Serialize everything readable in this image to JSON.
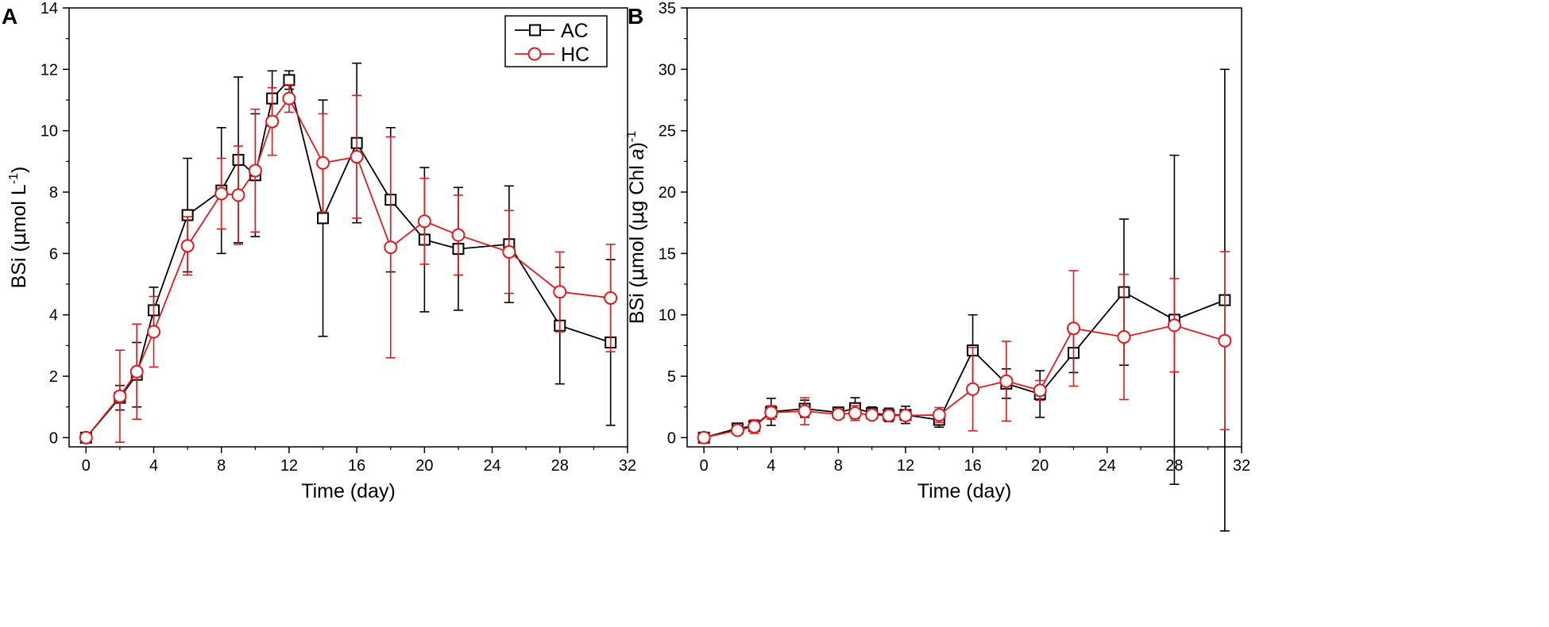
{
  "chart_data": [
    {
      "type": "line",
      "panel": "A",
      "xlabel": "Time (day)",
      "ylabel": {
        "pre": "BSi (",
        "mu": "μ",
        "mid": "mol L",
        "sup": "-1",
        "post": ")"
      },
      "xlim": [
        -1,
        32
      ],
      "ylim": [
        -0.3,
        14
      ],
      "xticks": [
        0,
        4,
        8,
        12,
        16,
        20,
        24,
        28,
        32
      ],
      "yticks": [
        0,
        2,
        4,
        6,
        8,
        10,
        12,
        14
      ],
      "x": [
        0,
        2,
        3,
        4,
        6,
        8,
        9,
        10,
        11,
        12,
        14,
        16,
        18,
        20,
        22,
        25,
        28,
        31
      ],
      "legend": {
        "position": "top-right",
        "entries": [
          "AC",
          "HC"
        ]
      },
      "series": [
        {
          "name": "AC",
          "color": "#000000",
          "marker": "square",
          "values": [
            0,
            1.3,
            2.05,
            4.15,
            7.25,
            8.05,
            9.05,
            8.55,
            11.05,
            11.65,
            7.15,
            9.6,
            7.75,
            6.45,
            6.15,
            6.3,
            3.65,
            3.1
          ],
          "errors": [
            0,
            0.4,
            1.05,
            0.75,
            1.85,
            2.05,
            2.7,
            2.0,
            0.9,
            0.3,
            3.85,
            2.6,
            2.35,
            2.35,
            2.0,
            1.9,
            1.9,
            2.7
          ]
        },
        {
          "name": "HC",
          "color": "#e41a1c",
          "marker": "circle",
          "values": [
            0,
            1.35,
            2.15,
            3.45,
            6.25,
            7.95,
            7.9,
            8.7,
            10.3,
            11.05,
            8.95,
            9.15,
            6.2,
            7.05,
            6.6,
            6.05,
            4.75,
            4.55
          ],
          "errors": [
            0,
            1.5,
            1.55,
            1.15,
            0.95,
            1.15,
            1.6,
            2.0,
            1.1,
            0.45,
            1.6,
            2.0,
            3.6,
            1.4,
            1.3,
            1.35,
            1.3,
            1.75
          ]
        }
      ]
    },
    {
      "type": "line",
      "panel": "B",
      "xlabel": "Time (day)",
      "ylabel": {
        "pre": "BSi (",
        "mu": "μ",
        "mid": "mol (",
        "mu2": "μ",
        "mid2": "g Chl ",
        "ital": "a",
        "post2": ")",
        "sup": "-1"
      },
      "xlim": [
        -1,
        32
      ],
      "ylim": [
        -0.75,
        35
      ],
      "xticks": [
        0,
        4,
        8,
        12,
        16,
        20,
        24,
        28,
        32
      ],
      "yticks": [
        0,
        5,
        10,
        15,
        20,
        25,
        30,
        35
      ],
      "x": [
        0,
        2,
        3,
        4,
        6,
        8,
        9,
        10,
        11,
        12,
        14,
        16,
        18,
        20,
        22,
        25,
        28,
        31
      ],
      "legend": null,
      "series": [
        {
          "name": "AC",
          "color": "#000000",
          "marker": "square",
          "values": [
            0,
            0.75,
            0.95,
            2.1,
            2.35,
            2.05,
            2.4,
            2.0,
            1.85,
            1.85,
            1.45,
            7.1,
            4.4,
            3.55,
            6.9,
            11.85,
            9.6,
            11.2
          ],
          "errors": [
            0,
            0.3,
            0.45,
            1.1,
            0.7,
            0.4,
            0.85,
            0.5,
            0.55,
            0.7,
            0.6,
            2.9,
            1.2,
            1.9,
            1.6,
            5.95,
            13.4,
            18.8
          ]
        },
        {
          "name": "HC",
          "color": "#e41a1c",
          "marker": "circle",
          "values": [
            0,
            0.6,
            0.9,
            2.05,
            2.15,
            1.9,
            2.0,
            1.85,
            1.8,
            1.8,
            1.85,
            3.95,
            4.6,
            3.85,
            8.9,
            8.2,
            9.15,
            7.9
          ],
          "errors": [
            0,
            0.25,
            0.55,
            0.55,
            1.1,
            0.3,
            0.6,
            0.35,
            0.35,
            0.35,
            0.6,
            3.4,
            3.25,
            0.8,
            4.7,
            5.1,
            3.8,
            7.25
          ]
        }
      ]
    }
  ]
}
